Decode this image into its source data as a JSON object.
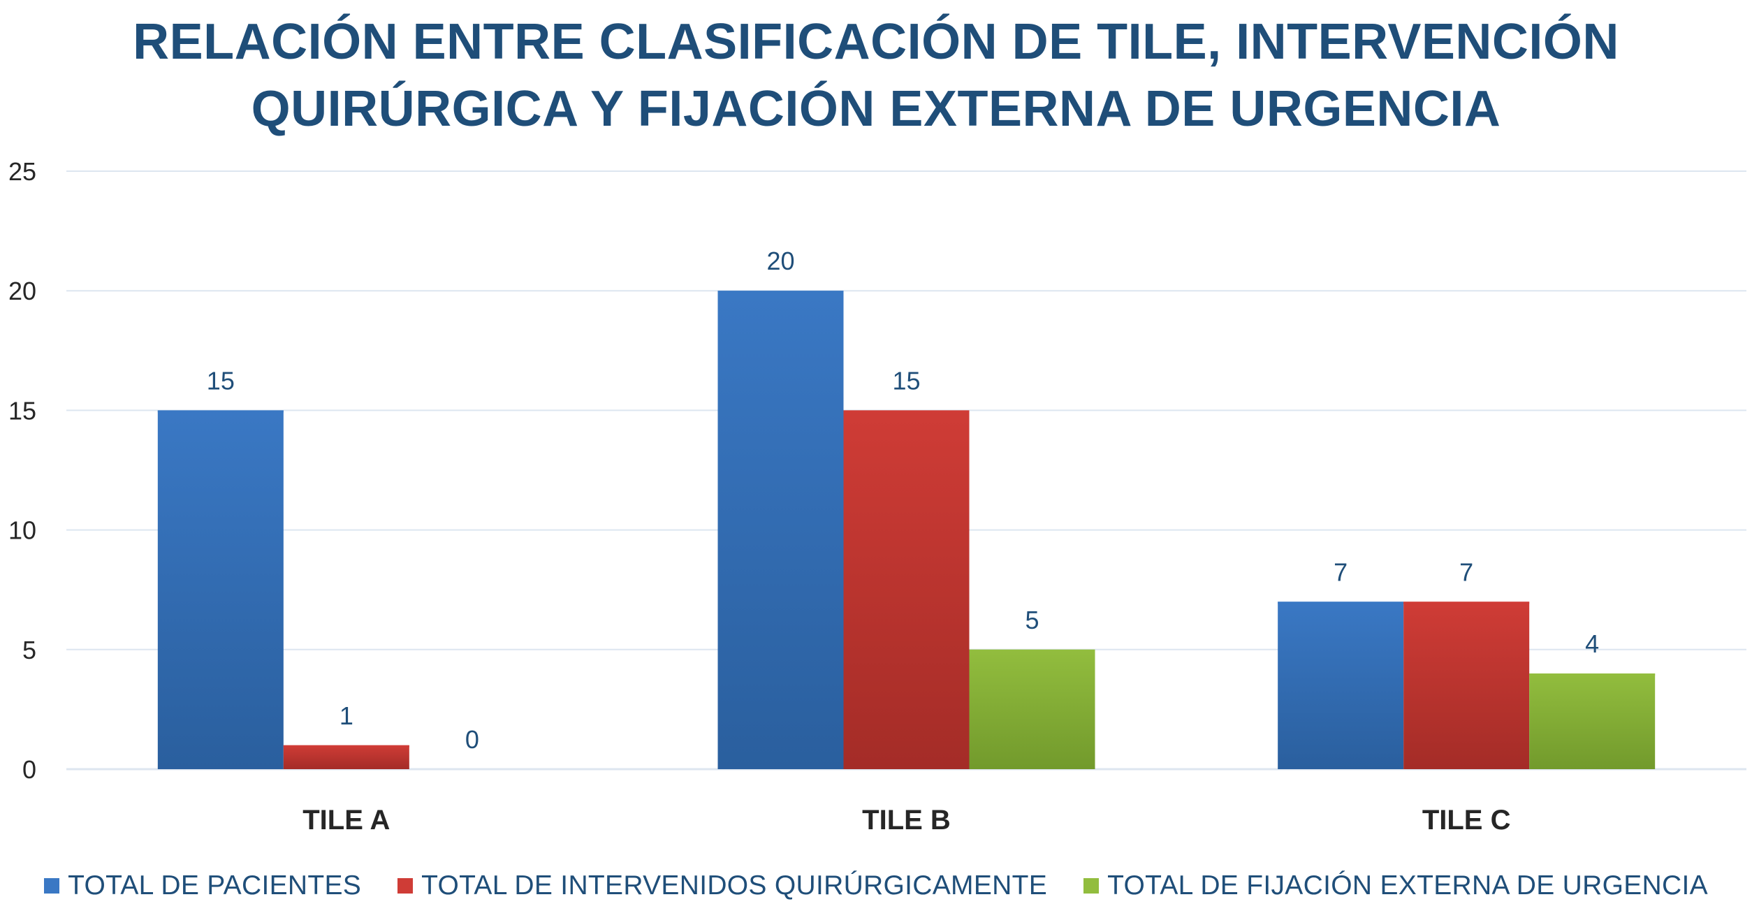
{
  "colors": {
    "title": "#1f4e79",
    "axis_text": "#262626",
    "label_text": "#1f4e79",
    "gridline": "#dde6f0",
    "series": [
      "#3a78c4",
      "#cf3c36",
      "#92bd3e"
    ],
    "series_dark": [
      "#2a5f9e",
      "#a42c27",
      "#729a2c"
    ]
  },
  "chart_data": {
    "type": "bar",
    "title": "RELACIÓN ENTRE CLASIFICACIÓN DE TILE, INTERVENCIÓN QUIRÚRGICA Y FIJACIÓN EXTERNA DE URGENCIA",
    "title_lines": [
      "RELACIÓN ENTRE CLASIFICACIÓN DE TILE, INTERVENCIÓN",
      "QUIRÚRGICA Y FIJACIÓN EXTERNA DE URGENCIA"
    ],
    "xlabel": "",
    "ylabel": "",
    "categories": [
      "TILE A",
      "TILE B",
      "TILE C"
    ],
    "series": [
      {
        "name": "TOTAL DE PACIENTES",
        "values": [
          15,
          20,
          7
        ]
      },
      {
        "name": "TOTAL DE INTERVENIDOS QUIRÚRGICAMENTE",
        "values": [
          1,
          15,
          7
        ]
      },
      {
        "name": "TOTAL DE FIJACIÓN EXTERNA DE URGENCIA",
        "values": [
          0,
          5,
          4
        ]
      }
    ],
    "ylim": [
      0,
      25
    ],
    "yticks": [
      0,
      5,
      10,
      15,
      20,
      25
    ],
    "grid": true,
    "data_labels": true,
    "legend_position": "bottom"
  }
}
